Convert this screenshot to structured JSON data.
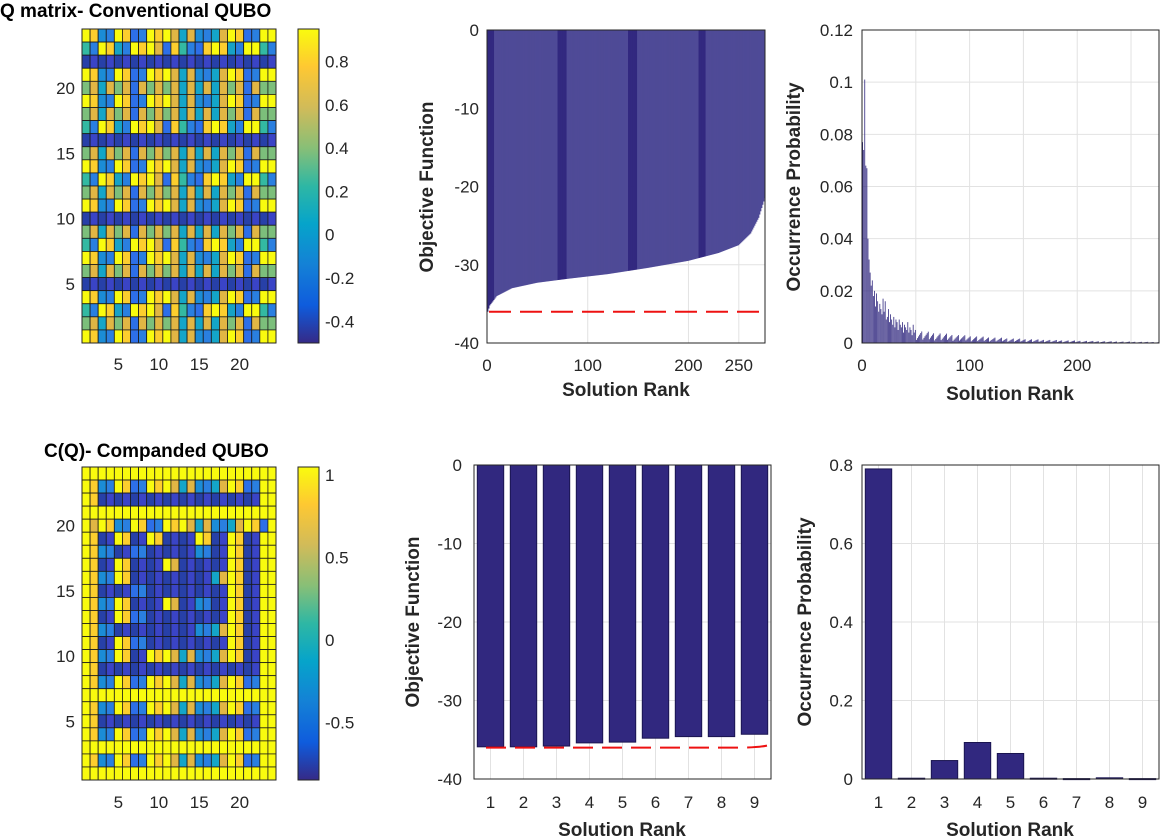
{
  "chart_data": [
    {
      "id": "heatmap-conventional",
      "type": "heatmap",
      "title": "Q matrix- Conventional QUBO",
      "size": 24,
      "xticks": [
        5,
        10,
        15,
        20
      ],
      "yticks": [
        5,
        10,
        15,
        20
      ],
      "colorbar": {
        "min": -0.5,
        "max": 0.95,
        "ticks": [
          "0.8",
          "0.6",
          "0.4",
          "0.2",
          "0",
          "-0.2",
          "-0.4"
        ],
        "tick_values": [
          0.8,
          0.6,
          0.4,
          0.2,
          0,
          -0.2,
          -0.4
        ]
      },
      "rows": [
        "Y1X3Y1B3Y1Y2C2X3C2Y1B3YY",
        "T3Y1S3Y1Y2B1T3B1Y1S3YY",
        "D4D4D4D4D4D4D4D4D4D4D4D4",
        "Y1X3Y1B3Y1Y2C2X3C2Y1B3YY",
        "G2C2G2B2G2G2C2C2C2G2B2GG",
        "Y1X3Y1B3Y1Y2C2X3C2Y1B3YY",
        "G2C2G2B2G2G2C2C2C2G2B2GG",
        "T3Y1S3Y1Y2B1T3B1Y1S3YY",
        "D4D4D4D4D4D4D4D4D4D4D4D4",
        "G2C2G2B2G2G2C2C2C2G2B2GG",
        "Y1X3Y1B3Y1Y2C2X3C2Y1B3YY",
        "T3Y1S3Y1Y2B1T3B1Y1S3YY",
        "G2C2G2B2G2G2C2C2C2G2B2GG",
        "Y1X3Y1B3Y1Y2C2X3C2Y1B3YY",
        "D4D4D4D4D4D4D4D4D4D4D4D4",
        "G2C2G2B2G2G2C2C2C2G2B2GG",
        "T3Y1S3Y1Y2B1T3B1Y1S3YY",
        "Y1X3Y1B3Y1Y2C2X3C2Y1B3YY",
        "G2C2G2B2G2G2C2C2C2G2B2GG",
        "D4D4D4D4D4D4D4D4D4D4D4D4",
        "Y1X3Y1B3Y1Y2C2X3C2Y1B3YY",
        "T3Y1S3Y1Y2B1T3B1Y1S3YY",
        "G2C2G2B2G2G2C2C2C2G2B2GG",
        "Y1X3Y1B3Y1Y2C2X3C2Y1B3YY"
      ]
    },
    {
      "id": "bar-conventional-objective",
      "type": "bar",
      "title": "",
      "xlabel": "Solution Rank",
      "ylabel": "Objective Function",
      "xlim": [
        0,
        276
      ],
      "ylim": [
        -40,
        0
      ],
      "xticks": [
        0,
        100,
        200,
        250
      ],
      "yticks": [
        0,
        -10,
        -20,
        -30,
        -40
      ],
      "n_solutions": 276,
      "curve": [
        [
          1,
          -36.0
        ],
        [
          3,
          -35.2
        ],
        [
          10,
          -34.0
        ],
        [
          25,
          -33.0
        ],
        [
          50,
          -32.3
        ],
        [
          80,
          -31.8
        ],
        [
          120,
          -31.2
        ],
        [
          160,
          -30.4
        ],
        [
          200,
          -29.5
        ],
        [
          230,
          -28.5
        ],
        [
          250,
          -27.5
        ],
        [
          262,
          -26.0
        ],
        [
          270,
          -24.0
        ],
        [
          276,
          -21.5
        ]
      ],
      "reference_line": -36
    },
    {
      "id": "bar-conventional-probability",
      "type": "bar",
      "title": "",
      "xlabel": "Solution Rank",
      "ylabel": "Occurrence Probability",
      "xlim": [
        0,
        276
      ],
      "ylim": [
        0,
        0.12
      ],
      "xticks": [
        0,
        100,
        200
      ],
      "yticks": [
        0,
        0.02,
        0.04,
        0.06,
        0.08,
        0.1,
        0.12
      ],
      "values": [
        0.077,
        0.074,
        0.101,
        0.068,
        0.067,
        0.04,
        0.032,
        0.027,
        0.022,
        0.024,
        0.018,
        0.02,
        0.014,
        0.019,
        0.016,
        0.012,
        0.015,
        0.013,
        0.011,
        0.017,
        0.012,
        0.016,
        0.009,
        0.01,
        0.013,
        0.008,
        0.011,
        0.009,
        0.007,
        0.01,
        0.006,
        0.009,
        0.008,
        0.005,
        0.009,
        0.007,
        0.006,
        0.008,
        0.004,
        0.007,
        0.006,
        0.005,
        0.008,
        0.004,
        0.006,
        0.005,
        0.003,
        0.007,
        0.004,
        0.005
      ]
    },
    {
      "id": "heatmap-companded",
      "type": "heatmap",
      "title": "C(Q)- Companded QUBO",
      "size": 24,
      "xticks": [
        5,
        10,
        15,
        20
      ],
      "yticks": [
        5,
        10,
        15,
        20
      ],
      "colorbar": {
        "min": -0.85,
        "max": 1.05,
        "ticks": [
          "1",
          "0.5",
          "0",
          "-0.5"
        ],
        "tick_values": [
          1,
          0.5,
          0,
          -0.5
        ]
      },
      "rows": [
        "YYYYYYYYYYYYYYYYYYYYYYYY",
        "Y1X3Y1B3Y1Y2C2X3C2Y1B3YY",
        "Y1D4D4D4D4D4D4D4D4D4D4YY",
        "YYYYYYYYYYYYYYYYYYYYYYYY",
        "Y2Y1X3Y1B3Y1Y2C2X3C2Y1BY",
        "Y1D4Y1D4Y1D4D4Y1D4Y1D4YY",
        "Y1X3D4B3D4D4D4X3D4Y1D4YY",
        "Y1D4Y1D4D4Y2D4D4D4Y1D4YY",
        "Y1X3Y1D4D4D4D4D4C2Y1D4YY",
        "Y1D4D4B3D4D4D4D4D4Y1D4YY",
        "Y1X3Y1D4D4Y2D4X3D4Y1D4YY",
        "Y1D4Y1B3D4D4D4D4D4Y1D4YY",
        "Y1X3D4D4D4D4D4X3C2Y1D4YY",
        "Y1D4Y1B3D4D4D4D4D4Y1D4YY",
        "Y1X3Y1D4Y1Y2C2X3C2Y1D4YY",
        "Y1D4D4D4D4D4D4D4D4D4D4YY",
        "Y1X3Y1B3Y1Y2C2X3C2Y1B3YY",
        "YYYYYYYYYYYYYYYYYYYYYYYY",
        "Y1X3Y1B3Y1Y2C2X3C2Y1B3YY",
        "Y1D4D4D4D4D4D4D4D4D4D4YY",
        "Y1X3Y1B3Y1Y2C2X3C2Y1B3YY",
        "YYYYYYYYYYYYYYYYYYYYYYYY",
        "Y1X3Y1B3Y1Y2C2X3C2Y1B3YY",
        "YYYYYYYYYYYYYYYYYYYYYYYY"
      ]
    },
    {
      "id": "bar-companded-objective",
      "type": "bar",
      "title": "",
      "xlabel": "Solution Rank",
      "ylabel": "Objective Function",
      "categories": [
        "1",
        "2",
        "3",
        "4",
        "5",
        "6",
        "7",
        "8",
        "9"
      ],
      "values": [
        -35.9,
        -35.9,
        -35.8,
        -35.4,
        -35.3,
        -34.8,
        -34.6,
        -34.6,
        -34.3
      ],
      "ylim": [
        -40,
        0
      ],
      "yticks": [
        0,
        -10,
        -20,
        -30,
        -40
      ],
      "reference_line": -36
    },
    {
      "id": "bar-companded-probability",
      "type": "bar",
      "title": "",
      "xlabel": "Solution Rank",
      "ylabel": "Occurrence Probability",
      "categories": [
        "1",
        "2",
        "3",
        "4",
        "5",
        "6",
        "7",
        "8",
        "9"
      ],
      "values": [
        0.79,
        0.002,
        0.047,
        0.093,
        0.065,
        0.002,
        0.001,
        0.003,
        0.001
      ],
      "ylim": [
        0,
        0.8
      ],
      "yticks": [
        0,
        0.2,
        0.4,
        0.6,
        0.8
      ]
    }
  ],
  "colors": {
    "bar_fill": "#31287f",
    "bar_edge": "#1a1450",
    "bar_fill_light": "#4f4a97",
    "reference_line": "#ee1111",
    "grid": "#e2e2e2",
    "axis": "#262626",
    "heatmap_grid": "#1a1a1a"
  }
}
